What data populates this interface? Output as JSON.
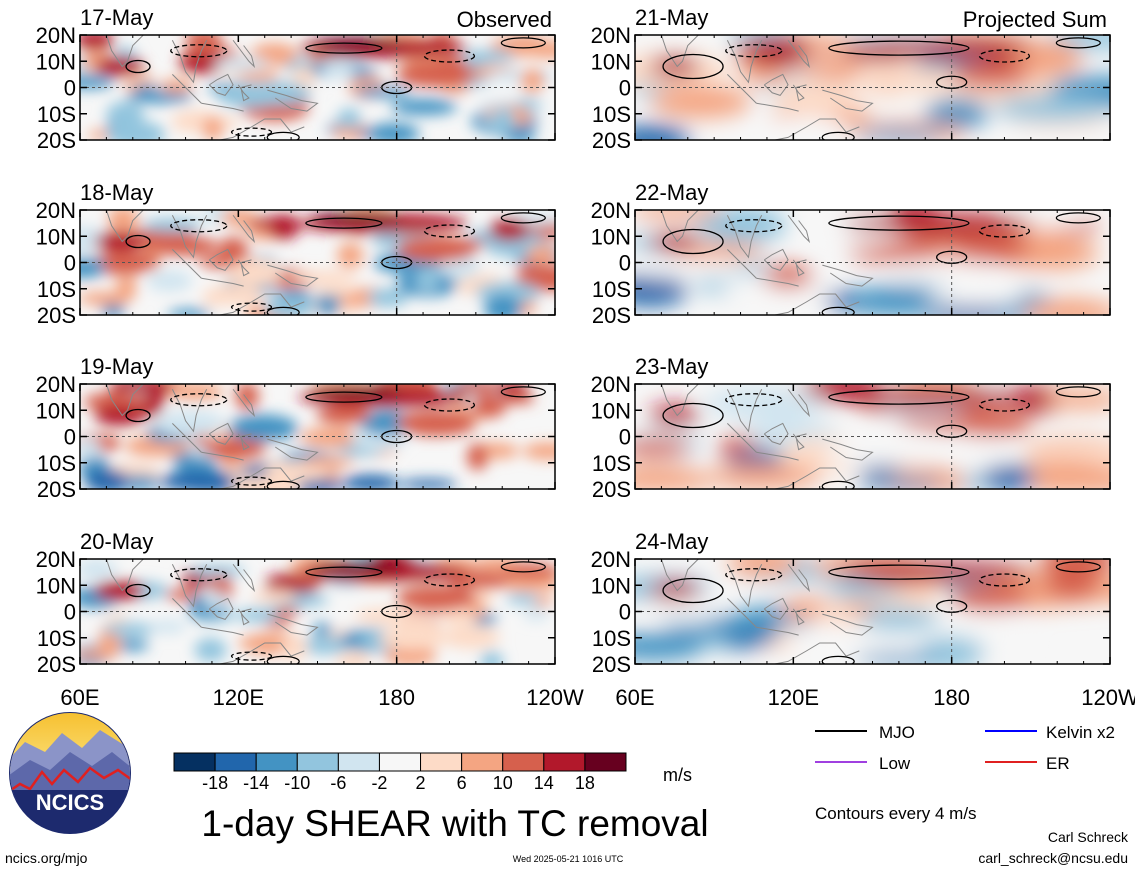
{
  "chart_data": {
    "type": "heatmap",
    "title": "1-day SHEAR with TC removal",
    "units": "m/s",
    "columns": [
      {
        "label": "Observed",
        "dates": [
          "17-May",
          "18-May",
          "19-May",
          "20-May"
        ]
      },
      {
        "label": "Projected Sum",
        "dates": [
          "21-May",
          "22-May",
          "23-May",
          "24-May"
        ]
      }
    ],
    "lat_ticks": [
      "20N",
      "10N",
      "0",
      "10S",
      "20S"
    ],
    "lat_values": [
      20,
      10,
      0,
      -10,
      -20
    ],
    "lon_ticks_left": [
      "60E",
      "120E",
      "180",
      "120W"
    ],
    "lon_ticks_right": [
      "60E",
      "120E",
      "180",
      "120W"
    ],
    "lon_values": [
      60,
      120,
      180,
      240
    ],
    "colorbar": {
      "colors": [
        "#053061",
        "#2166ac",
        "#4393c3",
        "#92c5de",
        "#d1e5f0",
        "#f7f7f7",
        "#fddbc7",
        "#f4a582",
        "#d6604d",
        "#b2182b",
        "#67001f"
      ],
      "tick_labels": [
        "-18",
        "-14",
        "-10",
        "-6",
        "-2",
        "2",
        "6",
        "10",
        "14",
        "18"
      ]
    },
    "legend": [
      {
        "label": "MJO",
        "color": "#000000"
      },
      {
        "label": "Kelvin x2",
        "color": "#0000ff"
      },
      {
        "label": "Low",
        "color": "#a040e0"
      },
      {
        "label": "ER",
        "color": "#e02020"
      }
    ],
    "contour_note": "Contours every 4 m/s"
  },
  "footer": {
    "logo_text": "NCICS",
    "url": "ncics.org/mjo",
    "timestamp": "Wed 2025-05-21 1016 UTC",
    "author": "Carl Schreck",
    "email": "carl_schreck@ncsu.edu"
  }
}
